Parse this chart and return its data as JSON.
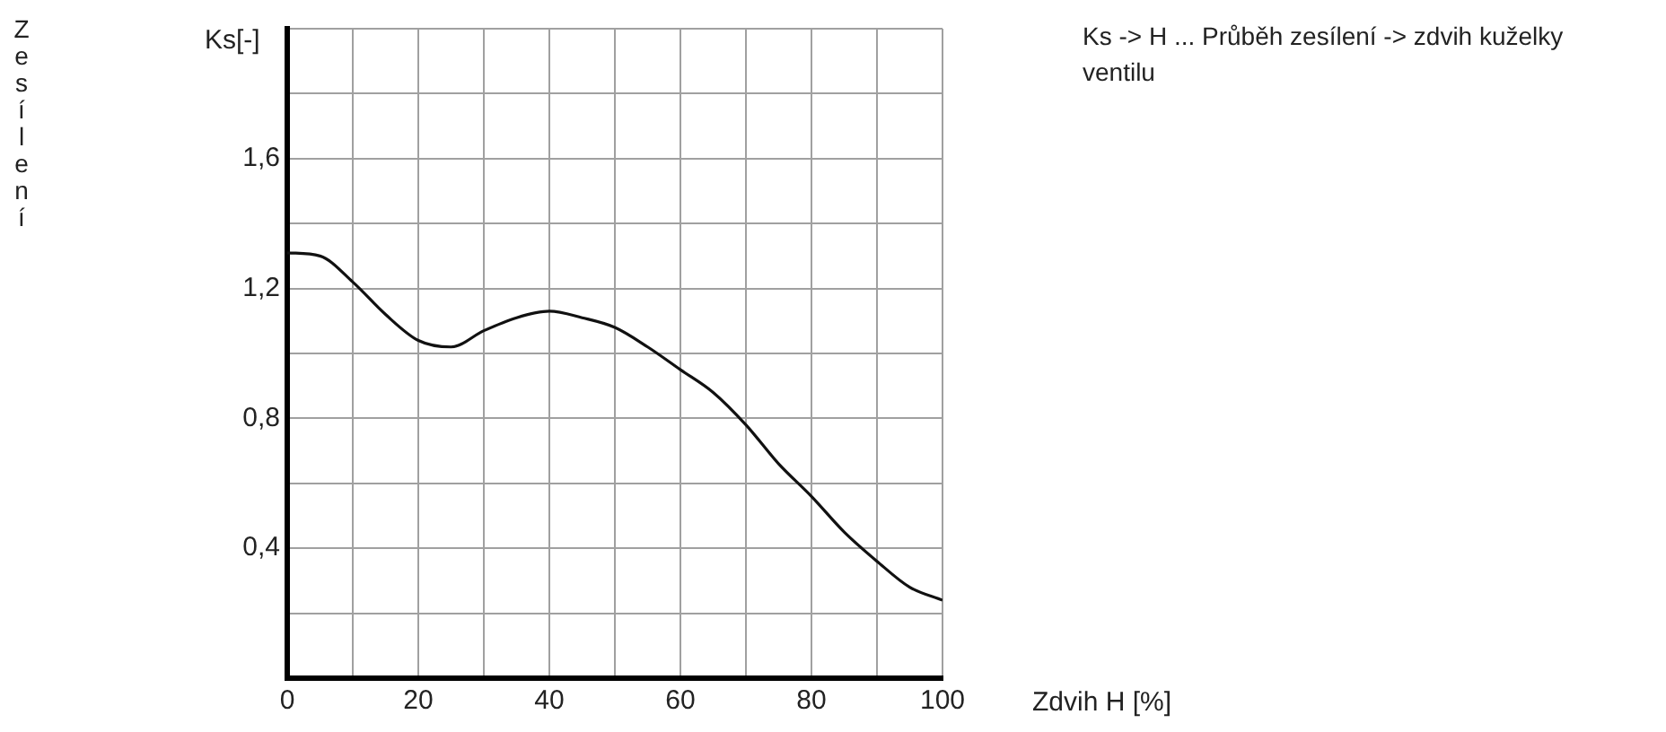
{
  "chart_data": {
    "type": "line",
    "ylabel": "Ks[-]",
    "xlabel": "Zdvih H [%]",
    "annotations": [
      "Ks -> H ... Průběh zesílení -> zdvih kuželky ventilu",
      "Zesílení"
    ],
    "x": [
      0,
      5,
      10,
      15,
      20,
      25,
      30,
      35,
      40,
      45,
      50,
      55,
      60,
      65,
      70,
      75,
      80,
      85,
      90,
      95,
      100
    ],
    "series": [
      {
        "color": "#111111",
        "values": [
          1.31,
          1.3,
          1.22,
          1.12,
          1.04,
          1.02,
          1.07,
          1.11,
          1.13,
          1.11,
          1.08,
          1.02,
          0.95,
          0.88,
          0.78,
          0.66,
          0.56,
          0.45,
          0.36,
          0.28,
          0.24
        ]
      }
    ],
    "xlim": [
      0,
      100
    ],
    "xticks": [
      0,
      {
        "value": 10,
        "label": null
      },
      20,
      {
        "value": 30,
        "label": null
      },
      40,
      {
        "value": 50,
        "label": null
      },
      60,
      {
        "value": 70,
        "label": null
      },
      80,
      {
        "value": 90,
        "label": null
      },
      100
    ],
    "ylim": [
      0,
      2
    ],
    "yticks": [
      {
        "value": 0,
        "label": null
      },
      {
        "value": 0.2,
        "label": null
      },
      {
        "value": 0.4,
        "label": "0,4"
      },
      {
        "value": 0.6,
        "label": null
      },
      {
        "value": 0.8,
        "label": "0,8"
      },
      {
        "value": 1,
        "label": null
      },
      {
        "value": 1.2,
        "label": "1,2"
      },
      {
        "value": 1.4,
        "label": null
      },
      {
        "value": 1.6,
        "label": "1,6"
      },
      {
        "value": 1.8,
        "label": null
      },
      {
        "value": 2,
        "label": null
      }
    ],
    "grid": true,
    "legend": false,
    "marker": "none",
    "line_style": "solid"
  }
}
